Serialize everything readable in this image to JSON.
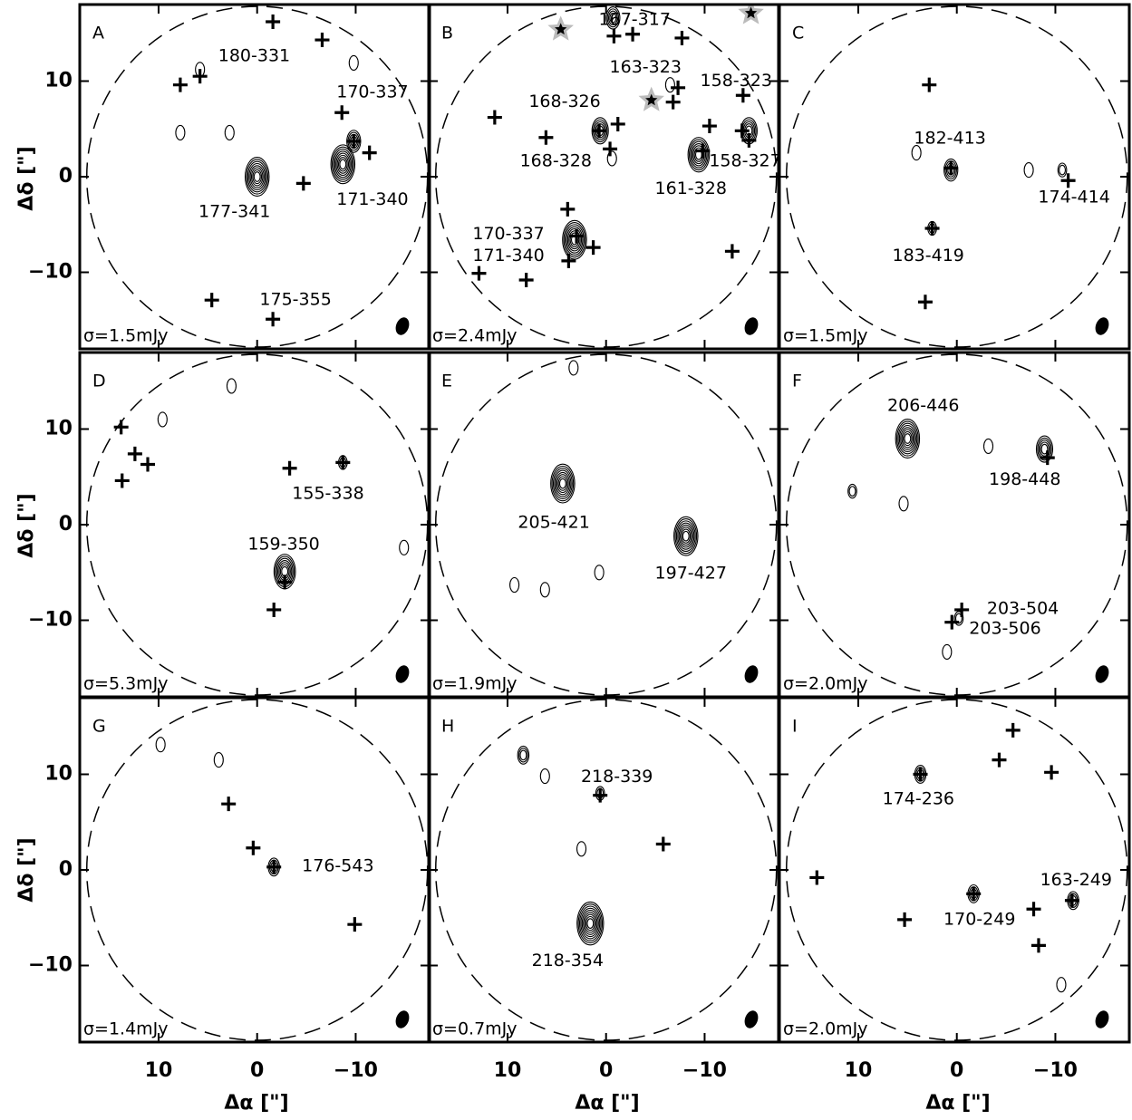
{
  "axes": {
    "xlabel": "Δα [\"]",
    "ylabel": "Δδ [\"]",
    "xlim": [
      18,
      -17.5
    ],
    "ylim": [
      -18,
      18
    ],
    "xticks": [
      10,
      0,
      {
        "value": -10,
        "label": "−10"
      }
    ],
    "yticks": [
      10,
      0,
      {
        "value": -10,
        "label": "−10"
      }
    ]
  },
  "chart_data": [
    {
      "type": "scatter",
      "panel": "A",
      "sigma": "σ=1.5mJy",
      "crosses": {
        "x": [
          -1.6,
          -6.6,
          5.8,
          7.8,
          -8.6,
          -9.8,
          -11.4,
          -4.7,
          4.6,
          -1.6
        ],
        "y": [
          16.2,
          14.3,
          10.5,
          9.6,
          6.7,
          3.7,
          2.5,
          -0.7,
          -12.9,
          -14.9
        ]
      },
      "contours": {
        "x": [
          0,
          -8.7,
          -9.8,
          7.8,
          2.8,
          5.8,
          -9.8
        ],
        "y": [
          0,
          1.3,
          3.7,
          4.6,
          4.6,
          11.2,
          11.9
        ],
        "levels": [
          8,
          8,
          4,
          1,
          1,
          1,
          1
        ]
      },
      "labels": [
        {
          "text": "180-331",
          "x": 0.3,
          "y": 12.6
        },
        {
          "text": "170-337",
          "x": -11.7,
          "y": 8.8
        },
        {
          "text": "171-340",
          "x": -11.7,
          "y": -2.4
        },
        {
          "text": "177-341",
          "x": 2.3,
          "y": -3.7
        },
        {
          "text": "175-355",
          "x": -3.9,
          "y": -12.9
        }
      ]
    },
    {
      "type": "scatter",
      "panel": "B",
      "sigma": "σ=2.4mJy",
      "crosses": {
        "x": [
          -0.8,
          -2.7,
          -7.7,
          11.3,
          6.1,
          0.7,
          -1.2,
          -0.4,
          -7.3,
          -6.8,
          -10.5,
          -13.9,
          -13.8,
          -14.5,
          -9.8,
          3.9,
          3.0,
          1.3,
          3.8,
          8.1,
          12.9,
          -12.8
        ],
        "y": [
          14.7,
          14.9,
          14.5,
          6.2,
          4.1,
          4.8,
          5.5,
          2.9,
          9.3,
          7.8,
          5.3,
          8.5,
          4.8,
          3.8,
          2.7,
          -3.4,
          -6.2,
          -7.4,
          -8.8,
          -10.8,
          -10.1,
          -7.8
        ]
      },
      "stars": {
        "x": [
          4.6,
          -4.6,
          -14.7
        ],
        "y": [
          15.4,
          8.0,
          17.1
        ]
      },
      "contours": {
        "x": [
          -0.7,
          0.6,
          3.2,
          -9.4,
          -14.5,
          -6.5,
          -0.6
        ],
        "y": [
          16.6,
          4.8,
          -6.6,
          2.3,
          4.8,
          9.6,
          1.9
        ],
        "levels": [
          4,
          5,
          8,
          7,
          5,
          1,
          1
        ]
      },
      "labels": [
        {
          "text": "167-317",
          "x": -2.9,
          "y": 16.4
        },
        {
          "text": "163-323",
          "x": -4.0,
          "y": 11.4
        },
        {
          "text": "158-323",
          "x": -13.2,
          "y": 10.0
        },
        {
          "text": "168-326",
          "x": 4.2,
          "y": 7.8
        },
        {
          "text": "168-328",
          "x": 5.1,
          "y": 1.6
        },
        {
          "text": "158-327",
          "x": -14.1,
          "y": 1.6
        },
        {
          "text": "161-328",
          "x": -8.6,
          "y": -1.3
        },
        {
          "text": "170-337",
          "x": 9.9,
          "y": -6.0
        },
        {
          "text": "171-340",
          "x": 9.9,
          "y": -8.3
        }
      ]
    },
    {
      "type": "scatter",
      "panel": "C",
      "sigma": "σ=1.5mJy",
      "crosses": {
        "x": [
          2.8,
          0.6,
          -11.3,
          2.5,
          3.2
        ],
        "y": [
          9.6,
          0.9,
          -0.4,
          -5.4,
          -13.1
        ]
      },
      "contours": {
        "x": [
          0.6,
          -10.7,
          -7.3,
          2.5,
          4.1
        ],
        "y": [
          0.7,
          0.7,
          0.7,
          -5.4,
          2.5
        ],
        "levels": [
          4,
          2,
          1,
          2,
          1
        ]
      },
      "labels": [
        {
          "text": "182-413",
          "x": 0.7,
          "y": 4.0
        },
        {
          "text": "174-414",
          "x": -11.9,
          "y": -2.2
        },
        {
          "text": "183-419",
          "x": 2.9,
          "y": -8.3
        }
      ]
    },
    {
      "type": "scatter",
      "panel": "D",
      "sigma": "σ=5.3mJy",
      "crosses": {
        "x": [
          13.8,
          12.4,
          11.1,
          13.7,
          -3.3,
          -8.7,
          -2.8,
          -1.7
        ],
        "y": [
          10.2,
          7.4,
          6.3,
          4.6,
          5.9,
          6.5,
          -6.0,
          -8.9
        ]
      },
      "contours": {
        "x": [
          -2.8,
          -8.7,
          9.6,
          2.6,
          -14.9
        ],
        "y": [
          -4.9,
          6.5,
          11.0,
          14.5,
          -2.4
        ],
        "levels": [
          7,
          2,
          1,
          1,
          1
        ]
      },
      "labels": [
        {
          "text": "155-338",
          "x": -7.2,
          "y": 3.2
        },
        {
          "text": "159-350",
          "x": -2.7,
          "y": -2.1
        }
      ]
    },
    {
      "type": "scatter",
      "panel": "E",
      "sigma": "σ=1.9mJy",
      "crosses": {
        "x": [],
        "y": []
      },
      "contours": {
        "x": [
          4.4,
          -8.1,
          0.7,
          6.2,
          9.3,
          3.3
        ],
        "y": [
          4.3,
          -1.2,
          -5.0,
          -6.8,
          -6.3,
          16.4
        ],
        "levels": [
          8,
          8,
          1,
          1,
          1,
          1
        ]
      },
      "labels": [
        {
          "text": "205-421",
          "x": 5.3,
          "y": 0.2
        },
        {
          "text": "197-427",
          "x": -8.6,
          "y": -5.1
        }
      ]
    },
    {
      "type": "scatter",
      "panel": "F",
      "sigma": "σ=2.0mJy",
      "crosses": {
        "x": [
          -9.2,
          -0.5,
          0.5
        ],
        "y": [
          7.0,
          -8.9,
          -10.2
        ]
      },
      "contours": {
        "x": [
          5.0,
          -8.9,
          -3.2,
          10.6,
          5.4,
          1.0,
          -0.2
        ],
        "y": [
          9.0,
          7.9,
          8.2,
          3.5,
          2.2,
          -13.3,
          -9.8
        ],
        "levels": [
          8,
          5,
          1,
          2,
          1,
          1,
          2
        ]
      },
      "labels": [
        {
          "text": "206-446",
          "x": 3.4,
          "y": 12.4
        },
        {
          "text": "198-448",
          "x": -6.9,
          "y": 4.7
        },
        {
          "text": "203-504",
          "x": -6.7,
          "y": -8.8
        },
        {
          "text": "203-506",
          "x": -4.9,
          "y": -10.9
        }
      ]
    },
    {
      "type": "scatter",
      "panel": "G",
      "sigma": "σ=1.4mJy",
      "crosses": {
        "x": [
          2.9,
          0.4,
          -1.7,
          -9.9
        ],
        "y": [
          6.9,
          2.3,
          0.3,
          -5.7
        ]
      },
      "contours": {
        "x": [
          -1.7,
          3.9,
          9.8
        ],
        "y": [
          0.3,
          11.5,
          13.1
        ],
        "levels": [
          3,
          1,
          1
        ]
      },
      "labels": [
        {
          "text": "176-543",
          "x": -8.2,
          "y": 0.4
        }
      ]
    },
    {
      "type": "scatter",
      "panel": "H",
      "sigma": "σ=0.7mJy",
      "crosses": {
        "x": [
          0.6,
          -5.8
        ],
        "y": [
          7.8,
          2.7
        ]
      },
      "contours": {
        "x": [
          1.6,
          8.4,
          0.6,
          2.5,
          6.2
        ],
        "y": [
          -5.6,
          12.0,
          8.0,
          2.2,
          9.8
        ],
        "levels": [
          9,
          3,
          2,
          1,
          1
        ]
      },
      "labels": [
        {
          "text": "218-339",
          "x": -1.1,
          "y": 9.7
        },
        {
          "text": "218-354",
          "x": 3.9,
          "y": -9.5
        }
      ]
    },
    {
      "type": "scatter",
      "panel": "I",
      "sigma": "σ=2.0mJy",
      "crosses": {
        "x": [
          -5.7,
          -4.3,
          -9.6,
          3.7,
          14.2,
          -1.7,
          -7.8,
          -11.7,
          5.3,
          -8.3
        ],
        "y": [
          14.6,
          11.5,
          10.2,
          10.0,
          -0.8,
          -2.5,
          -4.1,
          -3.2,
          -5.2,
          -7.9
        ]
      },
      "contours": {
        "x": [
          3.7,
          -1.7,
          -11.8,
          -10.6
        ],
        "y": [
          10.0,
          -2.5,
          -3.2,
          -12.0
        ],
        "levels": [
          3,
          3,
          3,
          1
        ]
      },
      "labels": [
        {
          "text": "174-236",
          "x": 3.9,
          "y": 7.4
        },
        {
          "text": "170-249",
          "x": -2.3,
          "y": -5.2
        },
        {
          "text": "163-249",
          "x": -12.1,
          "y": -1.1
        }
      ]
    }
  ]
}
